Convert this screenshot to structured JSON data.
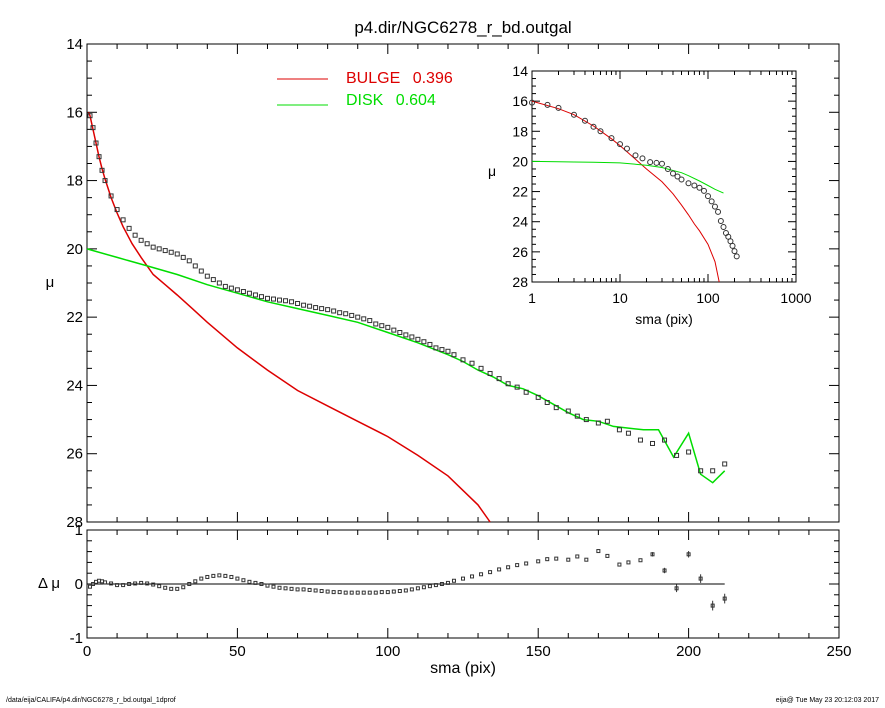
{
  "figure": {
    "title": "p4.dir/NGC6278_r_bd.outgal",
    "footer_left": "/data/eija/CALIFA/p4.dir/NGC6278_r_bd.outgal_1dprof",
    "footer_right": "eija@  Tue May 23 20:12:03 2017"
  },
  "colors": {
    "bulge": "#dd0000",
    "disk": "#00dd00",
    "data": "#333333",
    "axes": "#000000"
  },
  "chart_data": [
    {
      "id": "main",
      "type": "line",
      "title": "p4.dir/NGC6278_r_bd.outgal",
      "xlabel": "",
      "ylabel": "μ",
      "xlim": [
        0,
        250
      ],
      "ylim": [
        28,
        14
      ],
      "y_inverted": true,
      "yticks": [
        "14",
        "16",
        "18",
        "20",
        "22",
        "24",
        "26",
        "28"
      ],
      "legend": [
        {
          "name": "BULGE",
          "value": "0.396",
          "color": "#dd0000"
        },
        {
          "name": "DISK",
          "value": "0.604",
          "color": "#00dd00"
        }
      ],
      "series": [
        {
          "name": "BULGE",
          "style": "line",
          "color": "#dd0000",
          "x": [
            0.5,
            1,
            2,
            3,
            4,
            5,
            6,
            8,
            10,
            12,
            15,
            18,
            22,
            26,
            30,
            35,
            40,
            50,
            60,
            70,
            80,
            90,
            100,
            110,
            120,
            130,
            134
          ],
          "y": [
            16.0,
            16.1,
            16.5,
            16.9,
            17.3,
            17.65,
            17.95,
            18.5,
            18.95,
            19.35,
            19.85,
            20.25,
            20.75,
            21.05,
            21.35,
            21.75,
            22.15,
            22.9,
            23.55,
            24.15,
            24.6,
            25.05,
            25.5,
            26.05,
            26.65,
            27.5,
            28.0
          ]
        },
        {
          "name": "DISK",
          "style": "line",
          "color": "#00dd00",
          "x": [
            0,
            10,
            20,
            30,
            40,
            50,
            60,
            70,
            80,
            90,
            100,
            110,
            120,
            125,
            130,
            135,
            140,
            145,
            150,
            155,
            160,
            165,
            170,
            175,
            180,
            185,
            190,
            195,
            200,
            204,
            208,
            212
          ],
          "y": [
            20.0,
            20.25,
            20.5,
            20.75,
            21.05,
            21.3,
            21.55,
            21.75,
            21.95,
            22.15,
            22.45,
            22.75,
            23.1,
            23.3,
            23.55,
            23.75,
            24.0,
            24.1,
            24.3,
            24.55,
            24.8,
            25.0,
            25.05,
            25.2,
            25.25,
            25.3,
            25.3,
            26.1,
            25.4,
            26.6,
            26.85,
            26.5
          ]
        },
        {
          "name": "data",
          "style": "markers",
          "color": "#333333",
          "x": [
            1,
            2,
            3,
            4,
            5,
            6,
            8,
            10,
            12,
            14,
            16,
            18,
            20,
            22,
            24,
            26,
            28,
            30,
            32,
            34,
            36,
            38,
            40,
            42,
            44,
            46,
            48,
            50,
            52,
            54,
            56,
            58,
            60,
            62,
            64,
            66,
            68,
            70,
            72,
            74,
            76,
            78,
            80,
            82,
            84,
            86,
            88,
            90,
            92,
            94,
            96,
            98,
            100,
            102,
            104,
            106,
            108,
            110,
            112,
            114,
            116,
            118,
            120,
            122,
            125,
            128,
            131,
            134,
            137,
            140,
            143,
            146,
            150,
            153,
            156,
            160,
            163,
            166,
            170,
            173,
            177,
            180,
            184,
            188,
            192,
            196,
            200,
            204,
            208,
            212
          ],
          "y": [
            16.1,
            16.45,
            16.9,
            17.3,
            17.7,
            18.0,
            18.45,
            18.85,
            19.15,
            19.4,
            19.6,
            19.75,
            19.85,
            19.95,
            20.0,
            20.05,
            20.1,
            20.15,
            20.25,
            20.35,
            20.5,
            20.65,
            20.8,
            20.9,
            21.0,
            21.1,
            21.15,
            21.2,
            21.25,
            21.3,
            21.35,
            21.4,
            21.45,
            21.47,
            21.5,
            21.52,
            21.55,
            21.6,
            21.65,
            21.68,
            21.72,
            21.75,
            21.78,
            21.82,
            21.87,
            21.9,
            21.95,
            22.0,
            22.05,
            22.1,
            22.2,
            22.25,
            22.3,
            22.38,
            22.45,
            22.52,
            22.58,
            22.65,
            22.72,
            22.8,
            22.9,
            22.95,
            23.0,
            23.1,
            23.25,
            23.35,
            23.5,
            23.65,
            23.8,
            23.95,
            24.05,
            24.2,
            24.35,
            24.5,
            24.65,
            24.75,
            24.9,
            25.0,
            25.1,
            25.05,
            25.3,
            25.4,
            25.6,
            25.7,
            25.6,
            26.05,
            25.95,
            26.5,
            26.5,
            26.3
          ]
        }
      ]
    },
    {
      "id": "residual",
      "type": "scatter",
      "xlabel": "sma (pix)",
      "ylabel": "Δ μ",
      "xlim": [
        0,
        250
      ],
      "ylim": [
        -1,
        1
      ],
      "xticks": [
        "0",
        "50",
        "100",
        "150",
        "200",
        "250"
      ],
      "yticks": [
        "1",
        "0",
        "-1"
      ],
      "zero_line": {
        "x": [
          0,
          212
        ],
        "y": 0
      },
      "series": [
        {
          "name": "residual",
          "style": "markers_errorbars",
          "color": "#333333",
          "x": [
            1,
            2,
            3,
            4,
            5,
            6,
            8,
            10,
            12,
            14,
            16,
            18,
            20,
            22,
            24,
            26,
            28,
            30,
            32,
            34,
            36,
            38,
            40,
            42,
            44,
            46,
            48,
            50,
            52,
            54,
            56,
            58,
            60,
            62,
            64,
            66,
            68,
            70,
            72,
            74,
            76,
            78,
            80,
            82,
            84,
            86,
            88,
            90,
            92,
            94,
            96,
            98,
            100,
            102,
            104,
            106,
            108,
            110,
            112,
            114,
            116,
            118,
            120,
            122,
            125,
            128,
            131,
            134,
            137,
            140,
            143,
            146,
            150,
            153,
            156,
            160,
            163,
            166,
            170,
            173,
            177,
            180,
            184,
            188,
            192,
            196,
            200,
            204,
            208,
            212
          ],
          "y": [
            -0.05,
            0.0,
            0.04,
            0.06,
            0.05,
            0.03,
            0.01,
            -0.02,
            -0.02,
            0.0,
            0.01,
            0.02,
            0.01,
            -0.01,
            -0.04,
            -0.07,
            -0.09,
            -0.09,
            -0.06,
            0.0,
            0.05,
            0.1,
            0.13,
            0.15,
            0.16,
            0.15,
            0.13,
            0.1,
            0.07,
            0.04,
            0.02,
            0.0,
            -0.03,
            -0.05,
            -0.07,
            -0.08,
            -0.09,
            -0.1,
            -0.1,
            -0.11,
            -0.12,
            -0.13,
            -0.14,
            -0.15,
            -0.15,
            -0.16,
            -0.16,
            -0.16,
            -0.16,
            -0.16,
            -0.16,
            -0.15,
            -0.15,
            -0.14,
            -0.13,
            -0.12,
            -0.1,
            -0.08,
            -0.06,
            -0.04,
            -0.02,
            0.0,
            0.02,
            0.06,
            0.1,
            0.14,
            0.18,
            0.22,
            0.27,
            0.31,
            0.35,
            0.38,
            0.42,
            0.46,
            0.47,
            0.45,
            0.51,
            0.45,
            0.61,
            0.52,
            0.36,
            0.4,
            0.44,
            0.55,
            0.25,
            -0.08,
            0.55,
            0.1,
            -0.4,
            -0.27
          ],
          "yerr": [
            0,
            0,
            0,
            0,
            0,
            0,
            0,
            0,
            0,
            0,
            0,
            0,
            0,
            0,
            0,
            0,
            0,
            0,
            0,
            0,
            0,
            0,
            0,
            0,
            0,
            0,
            0,
            0,
            0,
            0,
            0,
            0,
            0,
            0,
            0,
            0,
            0,
            0,
            0,
            0,
            0,
            0,
            0,
            0,
            0,
            0,
            0,
            0,
            0,
            0,
            0,
            0,
            0,
            0,
            0,
            0,
            0,
            0,
            0,
            0,
            0,
            0,
            0,
            0,
            0,
            0,
            0,
            0,
            0,
            0,
            0,
            0,
            0,
            0,
            0,
            0,
            0,
            0,
            0,
            0,
            0,
            0,
            0,
            0.04,
            0.05,
            0.07,
            0.06,
            0.08,
            0.09,
            0.09
          ]
        }
      ]
    },
    {
      "id": "inset",
      "type": "line",
      "xlabel": "sma (pix)",
      "ylabel": "μ",
      "x_scale": "log",
      "xlim": [
        1,
        1000
      ],
      "ylim": [
        28,
        14
      ],
      "y_inverted": true,
      "xticks": [
        "1",
        "10",
        "100",
        "1000"
      ],
      "yticks": [
        "14",
        "16",
        "18",
        "20",
        "22",
        "24",
        "26",
        "28"
      ],
      "series": [
        {
          "name": "BULGE",
          "style": "line",
          "color": "#dd0000",
          "x": [
            1,
            2,
            3,
            5,
            8,
            10,
            15,
            20,
            30,
            40,
            50,
            60,
            70,
            80,
            100,
            120,
            134
          ],
          "y": [
            16.0,
            16.5,
            16.9,
            17.65,
            18.5,
            18.95,
            19.85,
            20.5,
            21.35,
            22.15,
            22.9,
            23.55,
            24.15,
            24.6,
            25.5,
            26.65,
            28.0
          ]
        },
        {
          "name": "DISK",
          "style": "line",
          "color": "#00dd00",
          "x": [
            1,
            2,
            3,
            5,
            10,
            20,
            30,
            40,
            50,
            60,
            80,
            100,
            120,
            150
          ],
          "y": [
            20.0,
            20.02,
            20.04,
            20.06,
            20.1,
            20.25,
            20.4,
            20.6,
            20.75,
            20.95,
            21.3,
            21.6,
            21.85,
            22.1
          ]
        },
        {
          "name": "data",
          "style": "markers",
          "color": "#333333",
          "x": [
            1,
            1.5,
            2,
            3,
            4,
            5,
            6,
            8,
            10,
            12,
            15,
            18,
            22,
            26,
            30,
            35,
            40,
            45,
            50,
            60,
            70,
            80,
            90,
            100,
            110,
            120,
            130,
            140,
            150,
            160,
            170,
            180,
            190,
            200,
            212
          ],
          "y": [
            16.1,
            16.25,
            16.45,
            16.9,
            17.3,
            17.7,
            18.0,
            18.45,
            18.85,
            19.15,
            19.6,
            19.8,
            20.05,
            20.1,
            20.15,
            20.5,
            20.8,
            21.0,
            21.2,
            21.45,
            21.6,
            21.75,
            21.95,
            22.3,
            22.65,
            23.0,
            23.35,
            23.95,
            24.35,
            24.75,
            25.0,
            25.3,
            25.6,
            25.95,
            26.3
          ]
        }
      ]
    }
  ]
}
